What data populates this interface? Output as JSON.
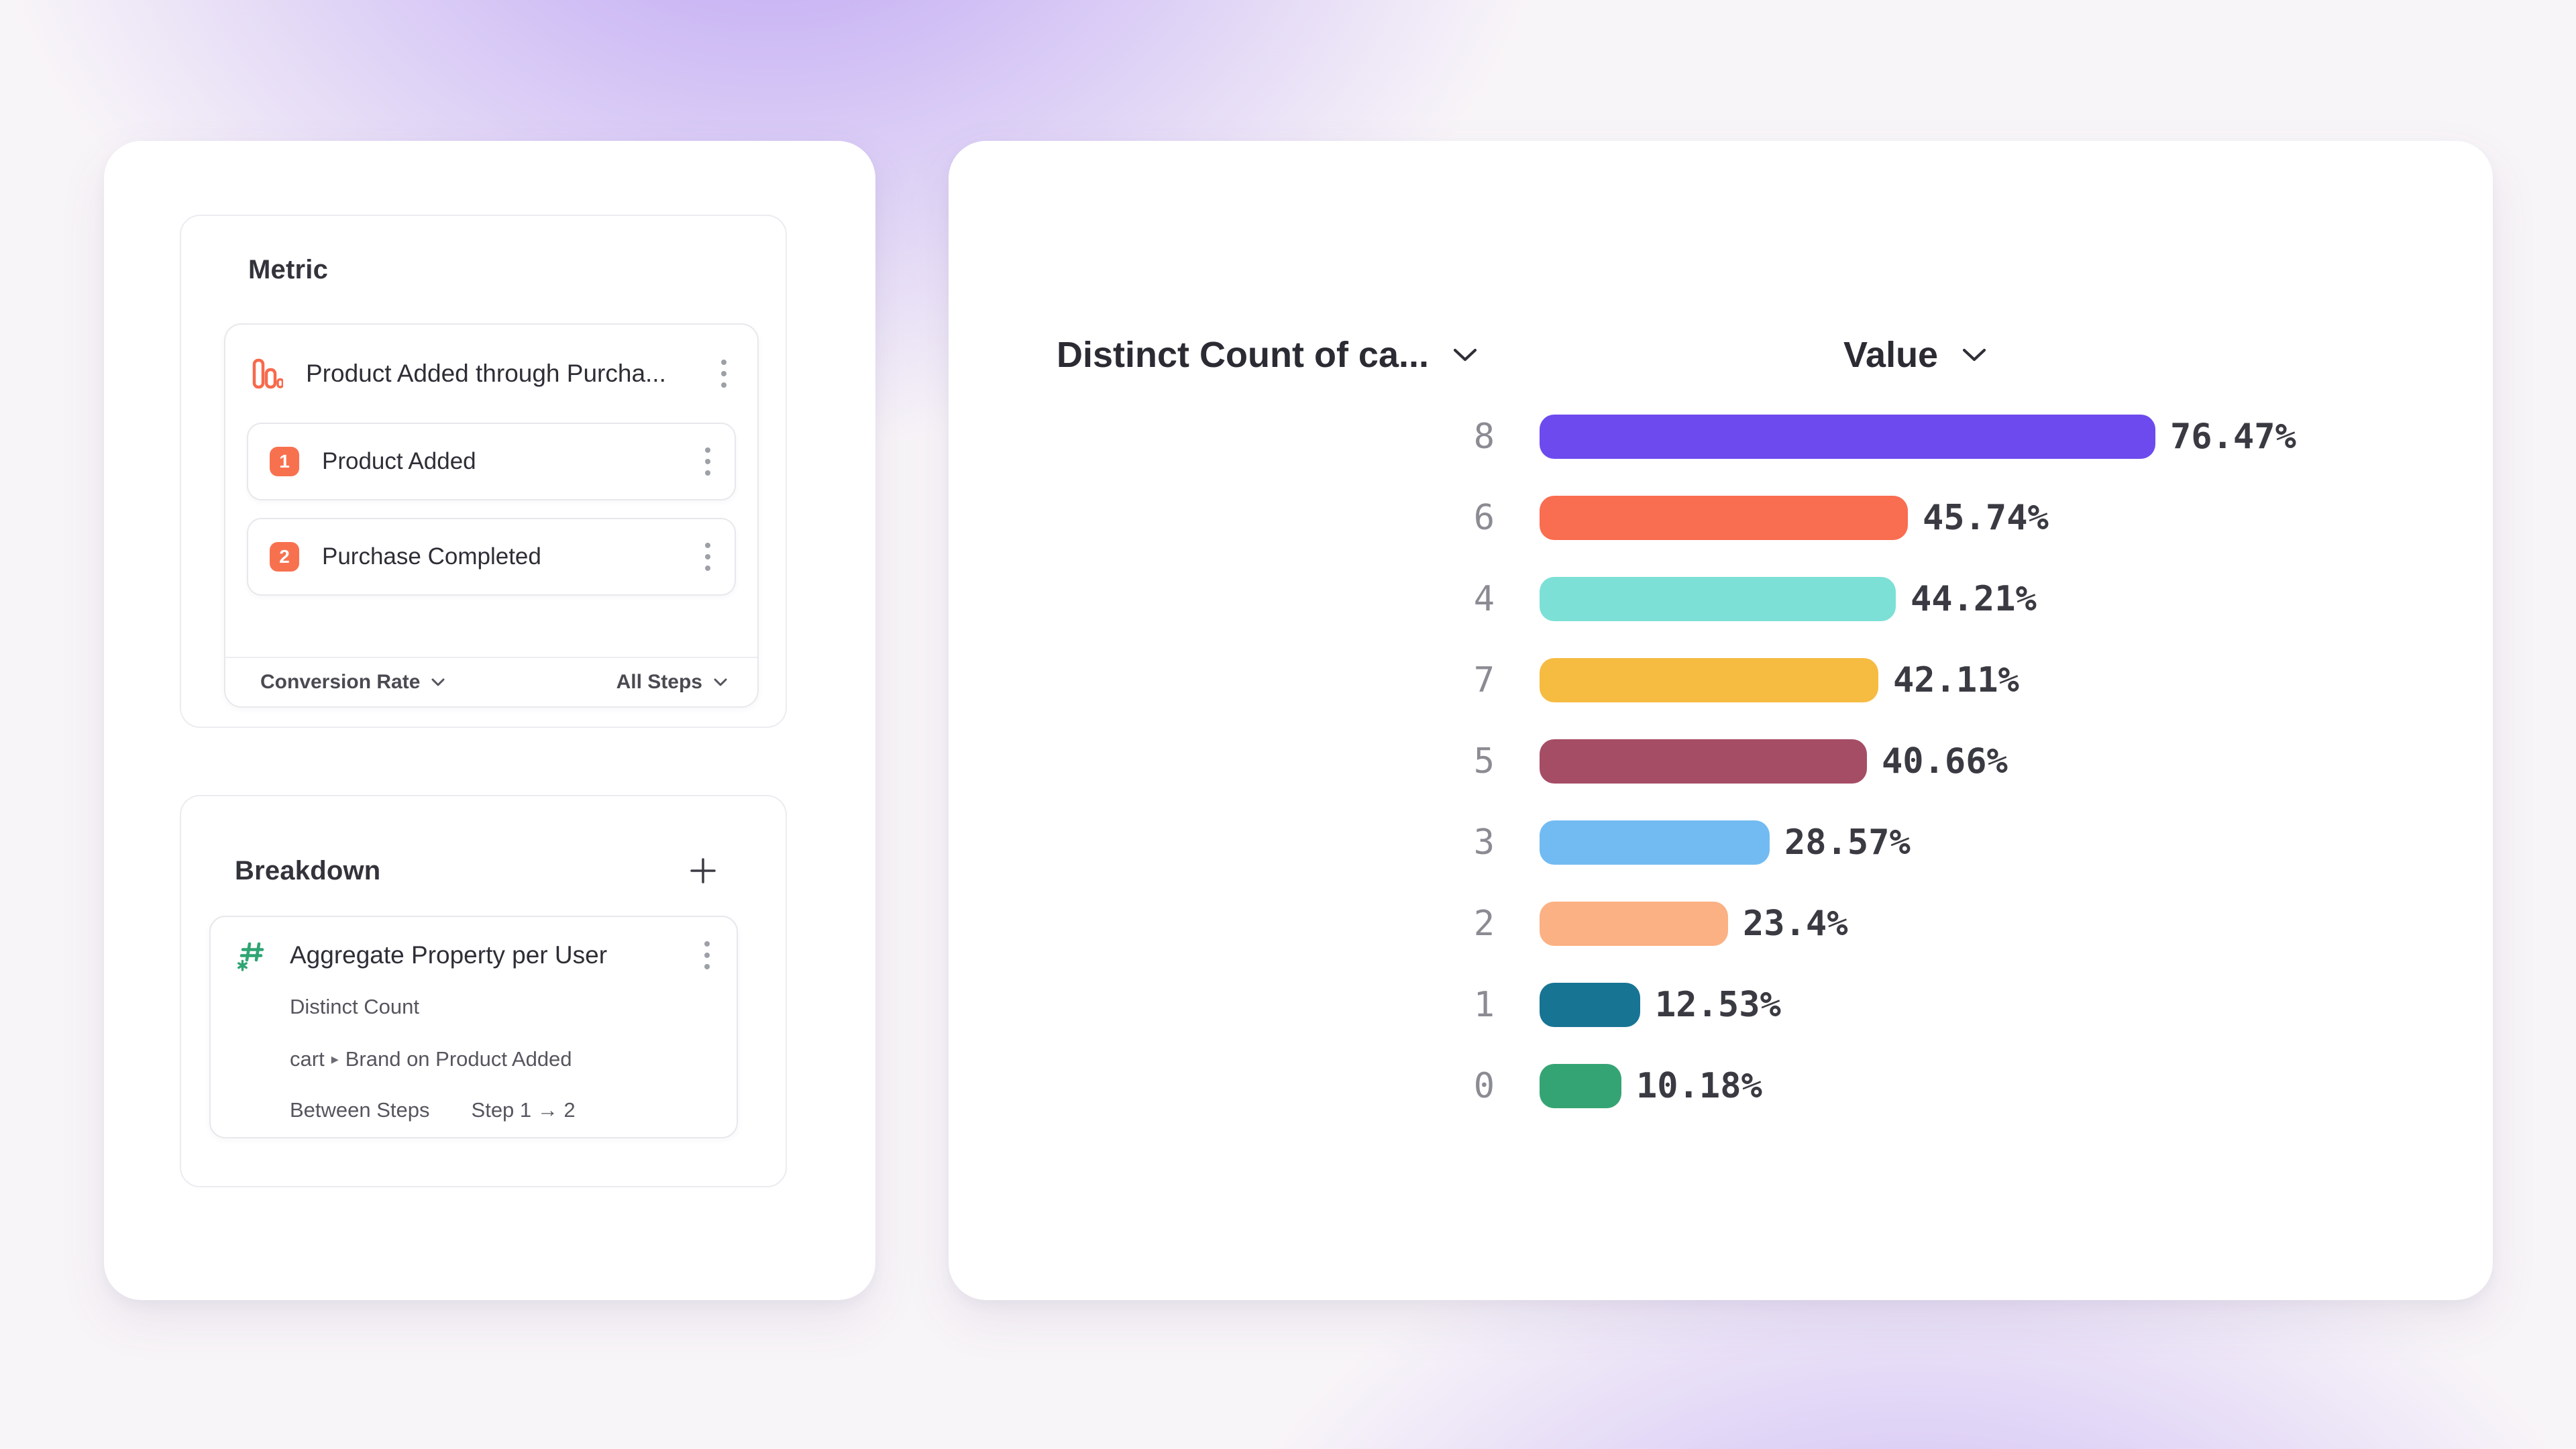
{
  "colors": {
    "accent_orange": "#f8694c",
    "accent_green": "#2fa573",
    "page_background": "#f8f5f8",
    "purple_glow": "#926af0",
    "card_background": "#ffffff"
  },
  "metric_panel": {
    "title": "Metric",
    "funnel_name": "Product Added through Purcha...",
    "steps": [
      {
        "number": "1",
        "label": "Product Added"
      },
      {
        "number": "2",
        "label": "Purchase Completed"
      }
    ],
    "conversion_label": "Conversion Rate",
    "steps_label": "All Steps"
  },
  "breakdown_panel": {
    "title": "Breakdown",
    "add_label": "+",
    "item_name": "Aggregate Property per User",
    "aggregation": "Distinct Count",
    "property_prefix": "cart",
    "property_separator": "▸",
    "property_rest": "Brand on Product Added",
    "between_label": "Between Steps",
    "between_value": "Step 1 → 2"
  },
  "chart": {
    "category_header": "Distinct Count of ca...",
    "value_header": "Value"
  },
  "chart_data": {
    "type": "bar",
    "orientation": "horizontal",
    "title": "",
    "xlabel": "Value",
    "ylabel": "Distinct Count of ca...",
    "xlim": [
      0,
      100
    ],
    "grid": false,
    "value_suffix": "%",
    "legend": "none",
    "categories": [
      "8",
      "6",
      "4",
      "7",
      "5",
      "3",
      "2",
      "1",
      "0"
    ],
    "values": [
      76.47,
      45.74,
      44.21,
      42.11,
      40.66,
      28.57,
      23.4,
      12.53,
      10.18
    ],
    "value_labels": [
      "76.47%",
      "45.74%",
      "44.21%",
      "42.11%",
      "40.66%",
      "28.57%",
      "23.4%",
      "12.53%",
      "10.18%"
    ],
    "bar_colors": [
      "#6d4aee",
      "#f96d50",
      "#7ce0d6",
      "#f6bb41",
      "#a64d66",
      "#72bbf2",
      "#fbb183",
      "#187493",
      "#35a474"
    ]
  }
}
